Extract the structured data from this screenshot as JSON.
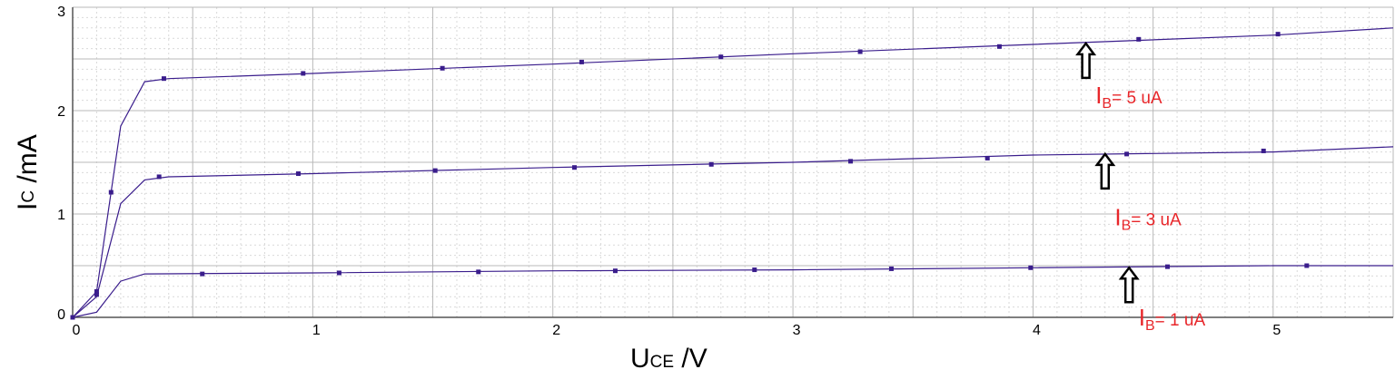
{
  "chart_data": {
    "type": "line",
    "title": "",
    "xlabel": {
      "main": "U",
      "sub": "CE",
      "unit": " /V"
    },
    "ylabel": {
      "main": "I",
      "sub": "C",
      "unit": " /mA"
    },
    "xlim": [
      0,
      5.5
    ],
    "ylim": [
      0,
      3
    ],
    "xticks": [
      0,
      1,
      2,
      3,
      4,
      5
    ],
    "yticks": [
      0,
      1,
      2,
      3
    ],
    "grid": true,
    "line_color": "#3a1d8c",
    "annotation_color": "#e8262a",
    "series": [
      {
        "curve": [
          [
            0,
            0
          ],
          [
            0.1,
            0.05
          ],
          [
            0.2,
            0.35
          ],
          [
            0.3,
            0.42
          ],
          [
            1,
            0.43
          ],
          [
            2,
            0.45
          ],
          [
            3,
            0.46
          ],
          [
            4,
            0.48
          ],
          [
            5,
            0.5
          ],
          [
            5.5,
            0.5
          ]
        ],
        "points": [
          [
            0,
            0
          ],
          [
            0.1,
            0.25
          ],
          [
            0.54,
            0.42
          ],
          [
            1.11,
            0.43
          ],
          [
            1.69,
            0.44
          ],
          [
            2.26,
            0.45
          ],
          [
            2.84,
            0.46
          ],
          [
            3.41,
            0.47
          ],
          [
            3.99,
            0.48
          ],
          [
            4.56,
            0.49
          ],
          [
            5.14,
            0.5
          ]
        ]
      },
      {
        "curve": [
          [
            0,
            0
          ],
          [
            0.1,
            0.2
          ],
          [
            0.2,
            1.1
          ],
          [
            0.3,
            1.33
          ],
          [
            0.4,
            1.36
          ],
          [
            1,
            1.39
          ],
          [
            2,
            1.45
          ],
          [
            3,
            1.5
          ],
          [
            4,
            1.57
          ],
          [
            5,
            1.6
          ],
          [
            5.5,
            1.65
          ]
        ],
        "points": [
          [
            0,
            0
          ],
          [
            0.1,
            0.22
          ],
          [
            0.36,
            1.36
          ],
          [
            0.94,
            1.39
          ],
          [
            1.51,
            1.42
          ],
          [
            2.09,
            1.45
          ],
          [
            2.66,
            1.48
          ],
          [
            3.24,
            1.51
          ],
          [
            3.81,
            1.54
          ],
          [
            4.39,
            1.58
          ],
          [
            4.96,
            1.61
          ]
        ]
      },
      {
        "curve": [
          [
            0,
            0
          ],
          [
            0.1,
            0.25
          ],
          [
            0.2,
            1.85
          ],
          [
            0.3,
            2.28
          ],
          [
            0.4,
            2.31
          ],
          [
            1,
            2.36
          ],
          [
            2,
            2.45
          ],
          [
            3,
            2.55
          ],
          [
            4,
            2.64
          ],
          [
            5,
            2.73
          ],
          [
            5.5,
            2.8
          ]
        ],
        "points": [
          [
            0,
            0
          ],
          [
            0.16,
            1.21
          ],
          [
            0.38,
            2.31
          ],
          [
            0.96,
            2.36
          ],
          [
            1.54,
            2.41
          ],
          [
            2.12,
            2.47
          ],
          [
            2.7,
            2.52
          ],
          [
            3.28,
            2.57
          ],
          [
            3.86,
            2.62
          ],
          [
            4.44,
            2.69
          ],
          [
            5.02,
            2.74
          ]
        ]
      }
    ],
    "annotations": [
      {
        "main": "I",
        "sub": "B",
        "rest": "= 5 uA",
        "arrow_x": 4.22,
        "arrow_y": 2.65,
        "label_x": 4.26,
        "label_y": 2.07
      },
      {
        "main": "I",
        "sub": "B",
        "rest": "=  3 uA",
        "arrow_x": 4.3,
        "arrow_y": 1.58,
        "label_x": 4.34,
        "label_y": 0.89
      },
      {
        "main": "I",
        "sub": "B",
        "rest": "= 1 uA",
        "arrow_x": 4.4,
        "arrow_y": 0.48,
        "label_x": 4.44,
        "label_y": -0.08
      }
    ]
  }
}
